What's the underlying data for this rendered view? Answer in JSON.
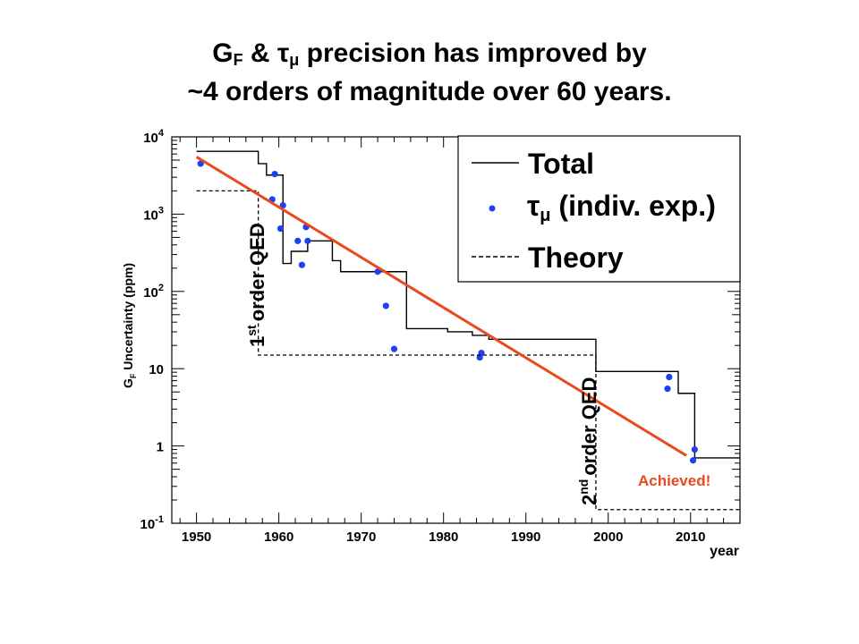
{
  "title": {
    "line1_pre": "G",
    "line1_sub": "F",
    "line1_mid": " & τ",
    "line1_sub2": "μ",
    "line1_post": " precision has improved by",
    "line2": "~4 orders of magnitude over 60 years."
  },
  "chart_data": {
    "type": "line",
    "ylabel_main": "G",
    "ylabel_sub": "F",
    "ylabel_rest": " Uncertainty (ppm)",
    "xlabel": "year",
    "xlim": [
      1947,
      2016
    ],
    "ylim": [
      0.1,
      10000
    ],
    "yscale": "log",
    "xticks": [
      1950,
      1960,
      1970,
      1980,
      1990,
      2000,
      2010
    ],
    "xtick_labels": [
      "1950",
      "1960",
      "1970",
      "1980",
      "1990",
      "2000",
      "2010"
    ],
    "yticks": [
      0.1,
      1,
      10,
      100,
      1000,
      10000
    ],
    "ytick_labels": [
      {
        "base": "10",
        "exp": "-1"
      },
      {
        "base": "1",
        "exp": ""
      },
      {
        "base": "10",
        "exp": ""
      },
      {
        "base": "10",
        "exp": "2"
      },
      {
        "base": "10",
        "exp": "3"
      },
      {
        "base": "10",
        "exp": "4"
      }
    ],
    "legend_position": "top-right",
    "legend": {
      "total": "Total",
      "tau_pre": "τ",
      "tau_sub": "μ",
      "tau_post": " (indiv. exp.)",
      "theory": "Theory"
    },
    "series": [
      {
        "name": "Total",
        "style": "solid-step",
        "x": [
          1950,
          1957.5,
          1958.5,
          1960.5,
          1961.5,
          1963.5,
          1964.5,
          1966.5,
          1967.5,
          1970.5,
          1975.5,
          1980.5,
          1983.5,
          1985.5,
          1998.5,
          2008.5,
          2010.5,
          2016
        ],
        "y": [
          6500,
          4500,
          3200,
          230,
          330,
          450,
          450,
          250,
          180,
          180,
          33,
          30,
          27,
          24,
          9.2,
          4.8,
          0.7,
          0.7
        ]
      },
      {
        "name": "τμ (indiv. exp.)",
        "style": "points",
        "x": [
          1950.5,
          1959.5,
          1959.2,
          1960.2,
          1960.5,
          1962.3,
          1962.8,
          1963.3,
          1963.5,
          1972,
          1973,
          1974,
          1984.4,
          1984.6,
          2007.2,
          2007.4,
          2010.3,
          2010.5
        ],
        "y": [
          4500,
          3300,
          1550,
          650,
          1300,
          450,
          220,
          680,
          450,
          180,
          65,
          18,
          14,
          16,
          5.5,
          7.8,
          0.65,
          0.9
        ]
      },
      {
        "name": "Theory",
        "style": "dashed-step",
        "x": [
          1950,
          1957.5,
          1957.5,
          1998.5,
          1998.5,
          2016
        ],
        "y": [
          2000,
          2000,
          15,
          15,
          0.15,
          0.15
        ]
      },
      {
        "name": "",
        "style": "trend-line",
        "x": [
          1950,
          2009.5
        ],
        "y": [
          5500,
          0.75
        ]
      }
    ],
    "annotations": {
      "first_order_main": "order QED",
      "first_order_num": "1",
      "first_order_sup": "st",
      "second_order_main": "order QED",
      "second_order_num": "2",
      "second_order_sup": "nd",
      "achieved": "Achieved!"
    },
    "colors": {
      "data_points": "#1f3ff0",
      "trend_line": "#e8491d",
      "frame": "#000000"
    }
  }
}
